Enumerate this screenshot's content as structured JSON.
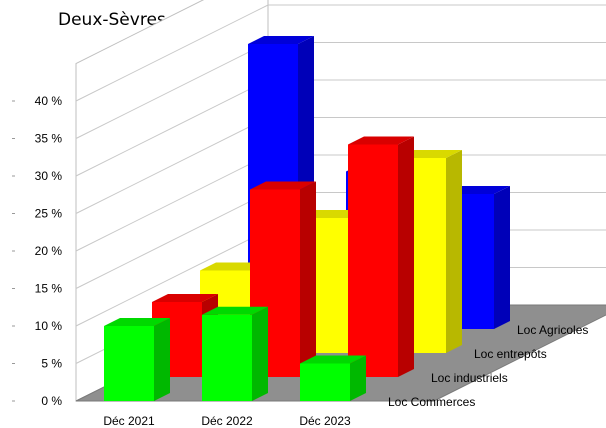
{
  "chart_data": {
    "type": "bar",
    "subtype": "3d-clustered-depth",
    "title": "Deux-Sèvres",
    "categories": [
      "Déc 2021",
      "Déc 2022",
      "Déc 2023"
    ],
    "y_ticks": [
      "0 %",
      "5 %",
      "10 %",
      "15 %",
      "20 %",
      "25 %",
      "30 %",
      "35 %",
      "40 %"
    ],
    "ylim": [
      0,
      45
    ],
    "grid": true,
    "legend": "depth-axis labels on right",
    "series": [
      {
        "name": "Loc Commerces",
        "color": "#00ff00",
        "values": [
          10,
          11.5,
          5
        ]
      },
      {
        "name": "Loc industriels",
        "color": "#ff0000",
        "values": [
          10,
          25,
          31
        ]
      },
      {
        "name": "Loc entrepôts",
        "color": "#ffff00",
        "values": [
          11,
          18,
          26
        ]
      },
      {
        "name": "Loc Agricoles",
        "color": "#0000ff",
        "values": [
          38,
          21,
          18
        ]
      }
    ]
  }
}
